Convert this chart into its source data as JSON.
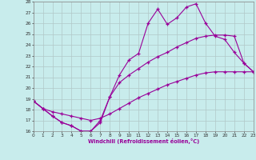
{
  "xlabel": "Windchill (Refroidissement éolien,°C)",
  "bg_color": "#c8ecec",
  "line_color": "#990099",
  "grid_color": "#b0c8c8",
  "xmin": 0,
  "xmax": 23,
  "ymin": 16,
  "ymax": 28,
  "line1_x": [
    0,
    1,
    2,
    3,
    4,
    5,
    6,
    7,
    8,
    9,
    10,
    11,
    12,
    13,
    14,
    15,
    16,
    17,
    18,
    19,
    20,
    21,
    22,
    23
  ],
  "line1_y": [
    18.8,
    18.1,
    17.4,
    16.8,
    16.5,
    16.0,
    16.0,
    16.8,
    19.2,
    21.2,
    22.6,
    23.2,
    26.0,
    27.3,
    25.9,
    26.5,
    27.5,
    27.8,
    26.0,
    24.8,
    24.5,
    23.3,
    22.3,
    21.5
  ],
  "line2_x": [
    0,
    1,
    2,
    3,
    4,
    5,
    6,
    7,
    8,
    9,
    10,
    11,
    12,
    13,
    14,
    15,
    16,
    17,
    18,
    19,
    20,
    21,
    22,
    23
  ],
  "line2_y": [
    18.8,
    18.1,
    17.4,
    16.8,
    16.5,
    16.0,
    16.0,
    17.0,
    19.2,
    20.5,
    21.2,
    21.8,
    22.4,
    22.9,
    23.3,
    23.8,
    24.2,
    24.6,
    24.8,
    24.9,
    24.9,
    24.8,
    22.3,
    21.5
  ],
  "line3_x": [
    0,
    1,
    2,
    3,
    4,
    5,
    6,
    7,
    8,
    9,
    10,
    11,
    12,
    13,
    14,
    15,
    16,
    17,
    18,
    19,
    20,
    21,
    22,
    23
  ],
  "line3_y": [
    18.8,
    18.1,
    17.8,
    17.6,
    17.4,
    17.2,
    17.0,
    17.2,
    17.6,
    18.1,
    18.6,
    19.1,
    19.5,
    19.9,
    20.3,
    20.6,
    20.9,
    21.2,
    21.4,
    21.5,
    21.5,
    21.5,
    21.5,
    21.5
  ]
}
